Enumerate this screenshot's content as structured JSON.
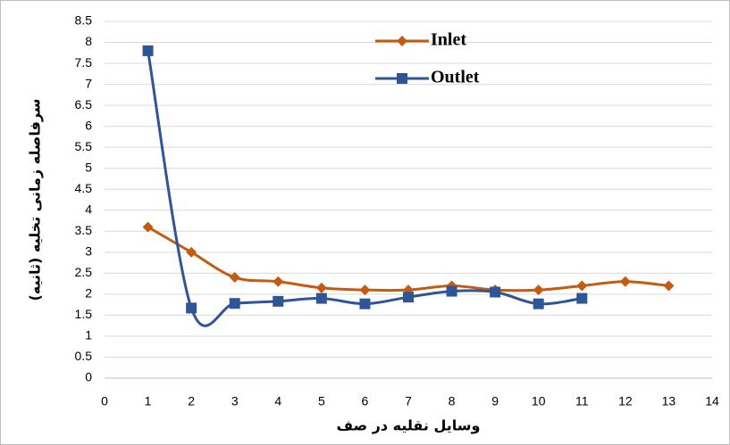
{
  "chart_data": {
    "type": "line",
    "x_label": "وسایل نقلیه در صف",
    "y_label": "سرفاصله زمانی تخلیه (ثانیه)",
    "series": [
      {
        "name": "Inlet",
        "color": "#c55a11",
        "marker": "diamond",
        "x": [
          1,
          2,
          3,
          4,
          5,
          6,
          7,
          8,
          9,
          10,
          11,
          12,
          13
        ],
        "values": [
          3.6,
          3.0,
          2.4,
          2.3,
          2.15,
          2.1,
          2.1,
          2.2,
          2.1,
          2.1,
          2.2,
          2.3,
          2.2
        ]
      },
      {
        "name": "Outlet",
        "color": "#2f5597",
        "marker": "square",
        "x": [
          1,
          2,
          3,
          4,
          5,
          6,
          7,
          8,
          9,
          10,
          11
        ],
        "values": [
          7.8,
          1.67,
          1.78,
          1.83,
          1.9,
          1.77,
          1.93,
          2.07,
          2.05,
          1.77,
          1.9
        ]
      }
    ],
    "xlim": [
      0,
      14
    ],
    "xticks": [
      0,
      1,
      2,
      3,
      4,
      5,
      6,
      7,
      8,
      9,
      10,
      11,
      12,
      13,
      14
    ],
    "ylim": [
      0,
      8.5
    ],
    "yticks": [
      0,
      0.5,
      1,
      1.5,
      2,
      2.5,
      3,
      3.5,
      4,
      4.5,
      5,
      5.5,
      6,
      6.5,
      7,
      7.5,
      8,
      8.5
    ],
    "grid": true,
    "smooth": true,
    "legend": "upper center"
  }
}
